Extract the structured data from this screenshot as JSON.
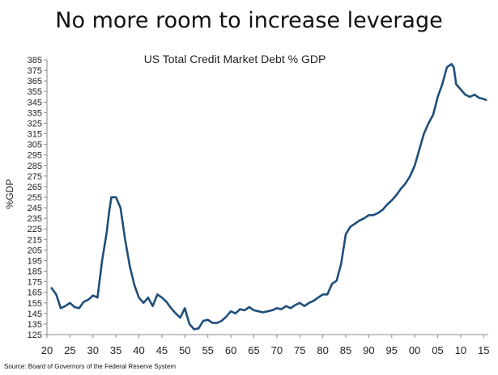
{
  "slide": {
    "title": "No more room to increase leverage",
    "source": "Source: Board of Governors of the Federal Reserve System"
  },
  "chart_data": {
    "type": "line",
    "title": "US Total Credit Market Debt % GDP",
    "xlabel": "",
    "ylabel": "%GDP",
    "xlim": [
      1920,
      2016
    ],
    "ylim": [
      125,
      385
    ],
    "x_ticks": [
      1920,
      1925,
      1930,
      1935,
      1940,
      1945,
      1950,
      1955,
      1960,
      1965,
      1970,
      1975,
      1980,
      1985,
      1990,
      1995,
      2000,
      2005,
      2010,
      2015
    ],
    "x_tick_labels": [
      "20",
      "25",
      "30",
      "35",
      "40",
      "45",
      "50",
      "55",
      "60",
      "65",
      "70",
      "75",
      "80",
      "85",
      "90",
      "95",
      "00",
      "05",
      "10",
      "15"
    ],
    "y_ticks": [
      125,
      135,
      145,
      155,
      165,
      175,
      185,
      195,
      205,
      215,
      225,
      235,
      245,
      255,
      265,
      275,
      285,
      295,
      305,
      315,
      325,
      335,
      345,
      355,
      365,
      375,
      385
    ],
    "grid": false,
    "legend": "none",
    "line_color": "#1f4e79",
    "series": [
      {
        "x": [
          1921,
          1922,
          1923,
          1924,
          1925,
          1926,
          1927,
          1928,
          1929,
          1930,
          1931,
          1932,
          1933,
          1933.5,
          1934,
          1935,
          1936,
          1937,
          1938,
          1939,
          1940,
          1941,
          1942,
          1943,
          1944,
          1945,
          1946,
          1947,
          1948,
          1949,
          1950,
          1950.5,
          1951,
          1952,
          1953,
          1954,
          1955,
          1956,
          1957,
          1958,
          1959,
          1960,
          1961,
          1962,
          1963,
          1964,
          1965,
          1966,
          1967,
          1968,
          1969,
          1970,
          1971,
          1972,
          1973,
          1974,
          1975,
          1976,
          1977,
          1978,
          1979,
          1980,
          1981,
          1982,
          1983,
          1984,
          1985,
          1986,
          1987,
          1988,
          1989,
          1990,
          1991,
          1992,
          1993,
          1994,
          1995,
          1996,
          1997,
          1998,
          1999,
          2000,
          2001,
          2002,
          2003,
          2004,
          2005,
          2006,
          2007,
          2008,
          2008.5,
          2009,
          2010,
          2011,
          2012,
          2013,
          2014,
          2015,
          2015.5
        ],
        "values": [
          169,
          163,
          150,
          152,
          155,
          151,
          150,
          156,
          158,
          162,
          160,
          195,
          222,
          240,
          255,
          255,
          245,
          215,
          190,
          172,
          160,
          155,
          160,
          152,
          163,
          160,
          156,
          150,
          145,
          141,
          150,
          142,
          135,
          130,
          131,
          138,
          139,
          136,
          136,
          138,
          142,
          147,
          145,
          149,
          148,
          151,
          148,
          147,
          146,
          147,
          148,
          150,
          149,
          152,
          150,
          153,
          155,
          152,
          155,
          157,
          160,
          163,
          163,
          173,
          176,
          192,
          220,
          227,
          230,
          233,
          235,
          238,
          238,
          240,
          243,
          248,
          252,
          257,
          263,
          268,
          275,
          285,
          300,
          315,
          325,
          333,
          350,
          362,
          378,
          381,
          378,
          362,
          357,
          352,
          350,
          352,
          349,
          348,
          347
        ]
      }
    ]
  }
}
